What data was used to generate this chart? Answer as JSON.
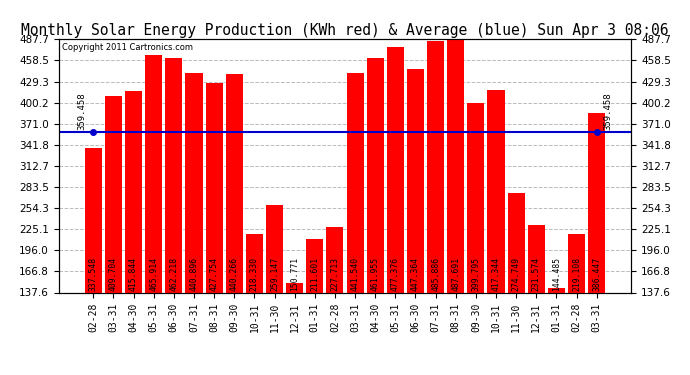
{
  "title": "Monthly Solar Energy Production (KWh red) & Average (blue) Sun Apr 3 08:06",
  "copyright": "Copyright 2011 Cartronics.com",
  "bar_color": "#ff0000",
  "average_color": "#0000cc",
  "background_color": "#ffffff",
  "plot_bg_color": "#ffffff",
  "grid_color": "#bbbbbb",
  "average_value": 359.458,
  "categories": [
    "02-28",
    "03-31",
    "04-30",
    "05-31",
    "06-30",
    "07-31",
    "08-31",
    "09-30",
    "10-31",
    "11-30",
    "12-31",
    "01-31",
    "02-28",
    "03-31",
    "04-30",
    "05-31",
    "06-30",
    "07-31",
    "08-31",
    "09-30",
    "10-31",
    "11-30",
    "12-31",
    "01-31",
    "02-28",
    "03-31"
  ],
  "values": [
    337.548,
    409.704,
    415.844,
    465.914,
    462.218,
    440.896,
    427.754,
    440.266,
    218.33,
    259.147,
    150.771,
    211.601,
    227.713,
    441.54,
    461.955,
    477.376,
    447.364,
    485.886,
    487.691,
    399.795,
    417.344,
    274.749,
    231.574,
    144.485,
    219.108,
    386.447
  ],
  "ylim_min": 137.6,
  "ylim_max": 487.7,
  "yticks": [
    137.6,
    166.8,
    196.0,
    225.1,
    254.3,
    283.5,
    312.7,
    341.8,
    371.0,
    400.2,
    429.3,
    458.5,
    487.7
  ],
  "title_fontsize": 10.5,
  "tick_fontsize": 7.5,
  "value_fontsize": 5.8,
  "avg_label": "359.458",
  "right_avg_label": "359.458"
}
